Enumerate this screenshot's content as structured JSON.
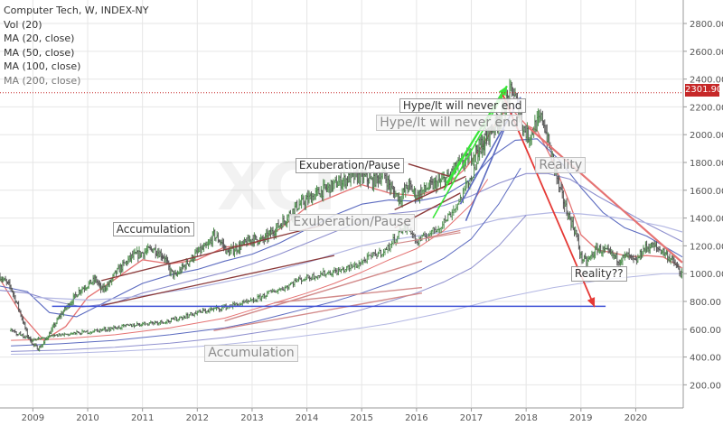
{
  "legend": {
    "title": "Computer Tech, W, INDEX-NY",
    "items": [
      "Vol (20)",
      "MA (20, close)",
      "MA (50, close)",
      "MA (100, close)",
      "MA (200, close)"
    ]
  },
  "last_price_label": "2301.90",
  "annotations": [
    {
      "text": "Hype/It will never end",
      "style": "small",
      "x": 2016.84,
      "y": 2210
    },
    {
      "text": "Hype/It will never end",
      "style": "big",
      "x": 2016.6,
      "y": 2085
    },
    {
      "text": "Exuberation/Pause",
      "style": "small",
      "x": 2014.78,
      "y": 1778
    },
    {
      "text": "Exuberation/Pause",
      "style": "big",
      "x": 2014.83,
      "y": 1365
    },
    {
      "text": "Accumulation",
      "style": "small",
      "x": 2011.2,
      "y": 1320
    },
    {
      "text": "Accumulation",
      "style": "big",
      "x": 2012.98,
      "y": 428
    },
    {
      "text": "Reality",
      "style": "big",
      "x": 2018.63,
      "y": 1780
    },
    {
      "text": "Reality??",
      "style": "small",
      "x": 2019.33,
      "y": 1000
    }
  ],
  "colors": {
    "price_up": "#4f8f4f",
    "price_down": "#555555",
    "ma20": "#e57373",
    "ma50": "#5c6bc0",
    "ma100": "#8e8fce",
    "ma200": "#b3b7e3",
    "trend_dark": "#8b3a3a",
    "trend_light": "#d28a8a",
    "hype": "#39e639",
    "reality_arrow": "#e53935",
    "support": "#3f51d6",
    "last_price": "#c62828"
  },
  "chart_data": {
    "type": "line",
    "title": "Computer Tech, W, INDEX-NY",
    "y_ticks": [
      200,
      400,
      600,
      800,
      1000,
      1200,
      1400,
      1600,
      1800,
      2000,
      2200,
      2400,
      2600,
      2800
    ],
    "x_ticks": [
      "2009",
      "2010",
      "2011",
      "2012",
      "2013",
      "2014",
      "2015",
      "2016",
      "2017",
      "2018",
      "2019",
      "2020"
    ],
    "xlim": [
      2008.4,
      2020.85
    ],
    "ylim": [
      40,
      2930
    ],
    "last_price": 2301.9,
    "series": [
      {
        "key": "upper_price",
        "x": [
          2008.4,
          2008.6,
          2008.75,
          2008.9,
          2009.0,
          2009.1,
          2009.2,
          2009.35,
          2009.5,
          2009.7,
          2009.85,
          2010.0,
          2010.15,
          2010.25,
          2010.4,
          2010.5,
          2010.65,
          2010.8,
          2011.0,
          2011.2,
          2011.4,
          2011.5,
          2011.6,
          2011.75,
          2011.9,
          2012.0,
          2012.2,
          2012.3,
          2012.45,
          2012.55,
          2012.7,
          2012.8,
          2013.0,
          2013.2,
          2013.4,
          2013.6,
          2013.8,
          2014.0,
          2014.2,
          2014.4,
          2014.6,
          2014.8,
          2015.0,
          2015.2,
          2015.4,
          2015.55,
          2015.7,
          2015.85,
          2016.0,
          2016.2,
          2016.4,
          2016.6,
          2016.75,
          2016.9,
          2017.0,
          2017.15,
          2017.3,
          2017.45,
          2017.55,
          2017.65,
          2017.75,
          2017.85,
          2017.95,
          2018.05,
          2018.15,
          2018.3,
          2018.4,
          2018.5,
          2018.6,
          2018.75,
          2018.9,
          2019.0,
          2019.1,
          2019.3,
          2019.5,
          2019.7,
          2019.85,
          2020.0,
          2020.15,
          2020.3,
          2020.5,
          2020.7,
          2020.85
        ],
        "y": [
          980,
          900,
          740,
          560,
          490,
          460,
          500,
          600,
          700,
          800,
          880,
          920,
          960,
          880,
          930,
          1000,
          1060,
          1120,
          1150,
          1180,
          1120,
          1020,
          980,
          1050,
          1110,
          1150,
          1200,
          1280,
          1220,
          1150,
          1180,
          1200,
          1250,
          1240,
          1310,
          1390,
          1480,
          1530,
          1580,
          1620,
          1660,
          1690,
          1700,
          1660,
          1720,
          1600,
          1540,
          1640,
          1560,
          1620,
          1650,
          1700,
          1780,
          1810,
          1850,
          1920,
          2000,
          2080,
          2150,
          2250,
          2330,
          2200,
          2050,
          1980,
          2060,
          2120,
          1950,
          1800,
          1620,
          1440,
          1300,
          1120,
          1080,
          1180,
          1150,
          1100,
          1130,
          1080,
          1180,
          1200,
          1160,
          1080,
          980
        ]
      },
      {
        "key": "lower_price",
        "x": [
          2008.6,
          2009.0,
          2009.5,
          2010.0,
          2010.5,
          2011.0,
          2011.5,
          2012.0,
          2012.5,
          2013.0,
          2013.3,
          2013.6,
          2013.8,
          2014.0,
          2014.3,
          2014.6,
          2014.9,
          2015.2,
          2015.45,
          2015.6,
          2015.75,
          2015.9,
          2016.0,
          2016.2,
          2016.4,
          2016.6,
          2016.75,
          2016.9,
          2017.0,
          2017.15,
          2017.3
        ],
        "y": [
          590,
          520,
          560,
          580,
          610,
          640,
          660,
          720,
          760,
          800,
          860,
          900,
          950,
          970,
          1000,
          1020,
          1060,
          1130,
          1170,
          1250,
          1330,
          1310,
          1220,
          1280,
          1330,
          1420,
          1500,
          1620,
          1700,
          1850,
          1970
        ]
      },
      {
        "key": "ma20",
        "x": [
          2008.4,
          2008.8,
          2009.2,
          2009.6,
          2010.0,
          2010.5,
          2011.0,
          2011.5,
          2012.0,
          2012.5,
          2013.0,
          2013.5,
          2014.0,
          2014.5,
          2015.0,
          2015.5,
          2016.0,
          2016.5,
          2016.9,
          2017.2,
          2017.5,
          2017.7,
          2018.0,
          2018.2,
          2018.5,
          2018.8,
          2019.0,
          2019.3,
          2019.6,
          2019.9,
          2020.2,
          2020.5,
          2020.85
        ],
        "y": [
          960,
          700,
          520,
          620,
          830,
          960,
          1100,
          1070,
          1100,
          1190,
          1210,
          1320,
          1480,
          1560,
          1640,
          1580,
          1560,
          1620,
          1760,
          1920,
          2120,
          2200,
          2070,
          2030,
          1800,
          1500,
          1280,
          1170,
          1150,
          1120,
          1130,
          1120,
          1040
        ]
      },
      {
        "key": "ma50",
        "x": [
          2008.4,
          2008.9,
          2009.3,
          2009.8,
          2010.3,
          2011.0,
          2011.5,
          2012.0,
          2012.5,
          2013.0,
          2013.5,
          2014.0,
          2014.5,
          2015.0,
          2015.5,
          2016.0,
          2016.5,
          2017.0,
          2017.4,
          2017.8,
          2018.2,
          2018.6,
          2019.0,
          2019.4,
          2019.8,
          2020.2,
          2020.85
        ],
        "y": [
          910,
          870,
          720,
          690,
          790,
          930,
          990,
          1030,
          1090,
          1140,
          1220,
          1320,
          1420,
          1500,
          1530,
          1520,
          1560,
          1680,
          1850,
          1960,
          1970,
          1820,
          1620,
          1440,
          1330,
          1270,
          1120
        ]
      },
      {
        "key": "ma100",
        "x": [
          2008.4,
          2008.9,
          2009.4,
          2009.9,
          2010.5,
          2011.0,
          2011.5,
          2012.0,
          2012.5,
          2013.0,
          2013.5,
          2014.0,
          2014.5,
          2015.0,
          2015.5,
          2016.0,
          2016.5,
          2017.0,
          2017.5,
          2018.0,
          2018.4,
          2018.8,
          2019.3,
          2019.8,
          2020.2,
          2020.85
        ],
        "y": [
          880,
          860,
          800,
          760,
          790,
          860,
          910,
          960,
          1010,
          1070,
          1140,
          1220,
          1300,
          1380,
          1430,
          1450,
          1490,
          1560,
          1650,
          1720,
          1720,
          1680,
          1560,
          1450,
          1360,
          1230
        ]
      },
      {
        "key": "ma200",
        "x": [
          2009.0,
          2009.5,
          2010.0,
          2010.5,
          2011.0,
          2011.5,
          2012.0,
          2012.5,
          2013.0,
          2013.5,
          2014.0,
          2014.5,
          2015.0,
          2015.5,
          2016.0,
          2016.5,
          2017.0,
          2017.5,
          2018.0,
          2018.5,
          2019.0,
          2019.5,
          2020.0,
          2020.5,
          2020.85
        ],
        "y": [
          830,
          820,
          810,
          820,
          840,
          870,
          900,
          940,
          980,
          1030,
          1080,
          1140,
          1200,
          1240,
          1270,
          1300,
          1340,
          1390,
          1420,
          1440,
          1430,
          1410,
          1380,
          1340,
          1300
        ]
      },
      {
        "key": "lower_ma_a",
        "x": [
          2008.6,
          2009.5,
          2010.5,
          2011.5,
          2012.5,
          2013.0,
          2013.5,
          2014.0,
          2014.5,
          2015.0,
          2015.5,
          2016.0,
          2016.5,
          2017.0,
          2017.3
        ],
        "y": [
          520,
          530,
          560,
          610,
          680,
          740,
          800,
          860,
          930,
          1010,
          1100,
          1180,
          1310,
          1500,
          1680
        ]
      },
      {
        "key": "lower_ma_b",
        "x": [
          2008.6,
          2009.5,
          2010.5,
          2011.5,
          2012.5,
          2013.0,
          2013.5,
          2014.0,
          2014.5,
          2015.0,
          2015.5,
          2016.0,
          2016.5,
          2017.0,
          2017.5,
          2017.9
        ],
        "y": [
          480,
          495,
          520,
          560,
          610,
          650,
          700,
          750,
          800,
          860,
          930,
          1010,
          1110,
          1250,
          1500,
          1760
        ]
      },
      {
        "key": "lower_ma_c",
        "x": [
          2008.6,
          2009.5,
          2010.5,
          2011.5,
          2012.5,
          2013.0,
          2013.5,
          2014.0,
          2014.5,
          2015.0,
          2015.5,
          2016.0,
          2016.5,
          2017.0,
          2017.5,
          2018.0
        ],
        "y": [
          440,
          450,
          470,
          500,
          540,
          570,
          600,
          640,
          690,
          740,
          800,
          860,
          940,
          1040,
          1200,
          1420
        ]
      },
      {
        "key": "lower_ma_d",
        "x": [
          2008.6,
          2009.5,
          2010.5,
          2011.5,
          2012.5,
          2013.5,
          2014.5,
          2015.5,
          2016.5,
          2017.5,
          2018.5,
          2019.5,
          2020.5,
          2020.85
        ],
        "y": [
          420,
          425,
          440,
          460,
          490,
          530,
          580,
          640,
          720,
          820,
          900,
          960,
          1000,
          1000
        ]
      }
    ],
    "trendlines": [
      {
        "key": "acc_upper",
        "x": [
          2010.25,
          2014.3
        ],
        "y": [
          950,
          1350
        ]
      },
      {
        "key": "acc_lower",
        "x": [
          2010.25,
          2014.5
        ],
        "y": [
          770,
          1130
        ]
      },
      {
        "key": "exub_top",
        "x": [
          2015.85,
          2016.6
        ],
        "y": [
          1790,
          1700
        ]
      },
      {
        "key": "exub_a",
        "x": [
          2015.6,
          2016.9
        ],
        "y": [
          1460,
          1700
        ]
      },
      {
        "key": "exub_b",
        "x": [
          2015.6,
          2016.8
        ],
        "y": [
          1330,
          1580
        ]
      },
      {
        "key": "exub_c",
        "x": [
          2016.2,
          2016.8
        ],
        "y": [
          1260,
          1310
        ]
      },
      {
        "key": "exub_d",
        "x": [
          2015.6,
          2016.8
        ],
        "y": [
          1215,
          1295
        ]
      },
      {
        "key": "lower_a",
        "x": [
          2012.5,
          2016.1
        ],
        "y": [
          660,
          1090
        ]
      },
      {
        "key": "lower_b",
        "x": [
          2012.3,
          2016.1
        ],
        "y": [
          590,
          860
        ]
      },
      {
        "key": "lower_c",
        "x": [
          2013.4,
          2016.1
        ],
        "y": [
          790,
          900
        ]
      },
      {
        "key": "reality_line",
        "x": [
          2018.05,
          2020.85
        ],
        "y": [
          2050,
          1080
        ]
      },
      {
        "key": "hype_1",
        "x": [
          2016.3,
          2017.6
        ],
        "y": [
          1400,
          2300
        ]
      },
      {
        "key": "hype_2",
        "x": [
          2016.5,
          2017.6
        ],
        "y": [
          1600,
          2330
        ]
      },
      {
        "key": "blue_1",
        "x": [
          2016.8,
          2017.9
        ],
        "y": [
          1500,
          2270
        ]
      },
      {
        "key": "blue_2",
        "x": [
          2016.9,
          2017.6
        ],
        "y": [
          1380,
          2040
        ]
      },
      {
        "key": "support",
        "x": [
          2009.35,
          2019.45
        ],
        "y": [
          765,
          765
        ]
      }
    ],
    "arrows": [
      {
        "key": "reality_arrow",
        "x": [
          2017.55,
          2019.25
        ],
        "y": [
          2310,
          760
        ]
      },
      {
        "key": "hype_arrow",
        "x": [
          2016.55,
          2017.65
        ],
        "y": [
          1650,
          2350
        ]
      }
    ]
  }
}
